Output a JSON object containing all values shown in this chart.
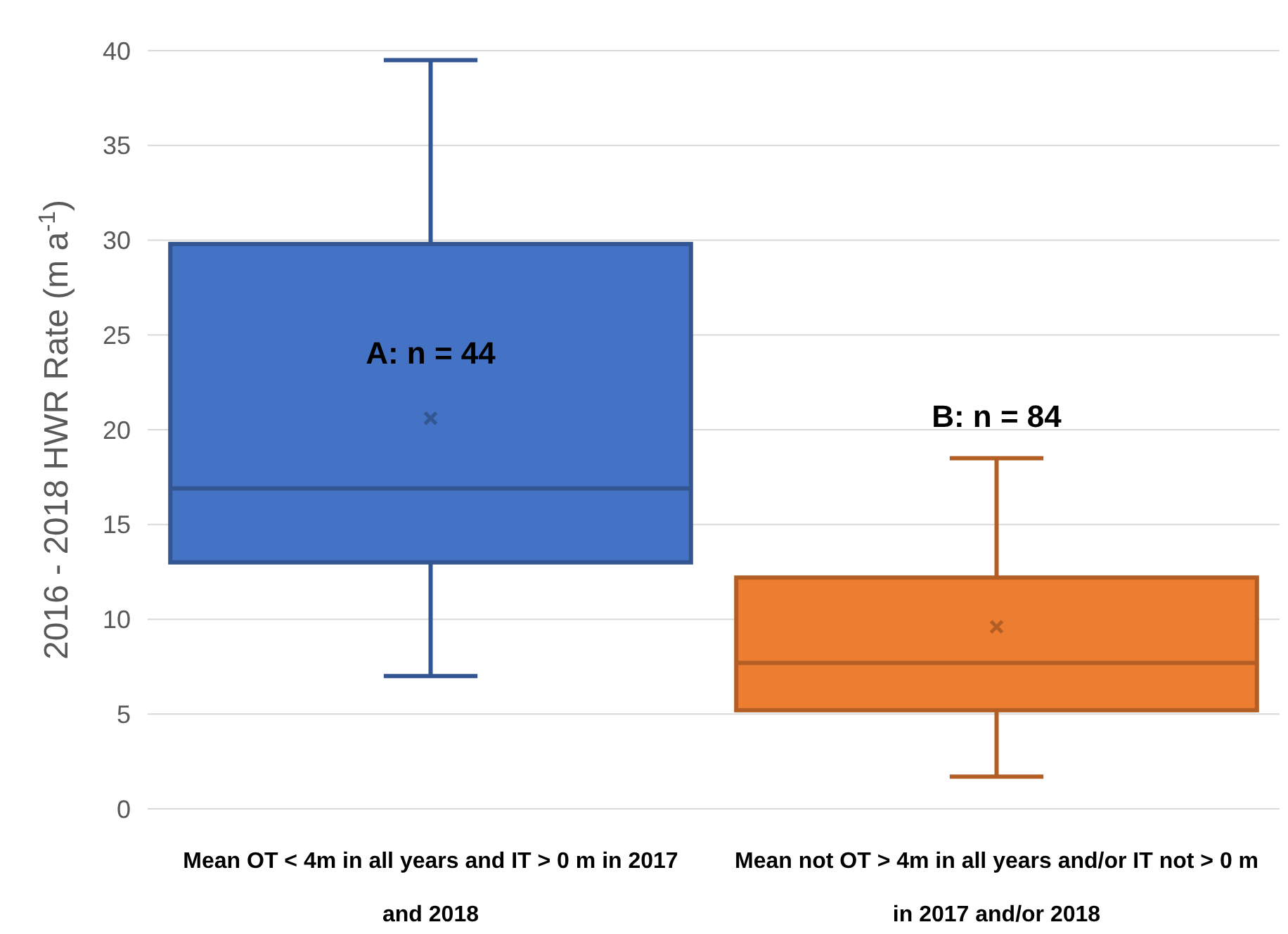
{
  "chart_data": {
    "type": "box",
    "ylabel": "2016 - 2018 HWR Rate (m a$^{-1}$)",
    "categories": [
      "Mean OT < 4m in all years and IT > 0 m in 2017 and 2018",
      "Mean not OT > 4m in all years and/or IT not > 0 m in 2017 and/or 2018"
    ],
    "boxes": [
      {
        "low": 7.0,
        "q1": 13.0,
        "median": 16.9,
        "q3": 29.8,
        "high": 39.5,
        "mean": 20.6
      },
      {
        "low": 1.7,
        "q1": 5.2,
        "median": 7.7,
        "q3": 12.2,
        "high": 18.5,
        "mean": 9.6
      }
    ],
    "colors": [
      "#4472c4",
      "#ed7d31"
    ],
    "ylim": [
      0,
      40
    ],
    "yticks": [
      0,
      5,
      10,
      15,
      20,
      25,
      30,
      35,
      40
    ],
    "grid": "y",
    "marker": "cross",
    "annotations": [
      "A: n = 44",
      "B: n = 84"
    ]
  }
}
